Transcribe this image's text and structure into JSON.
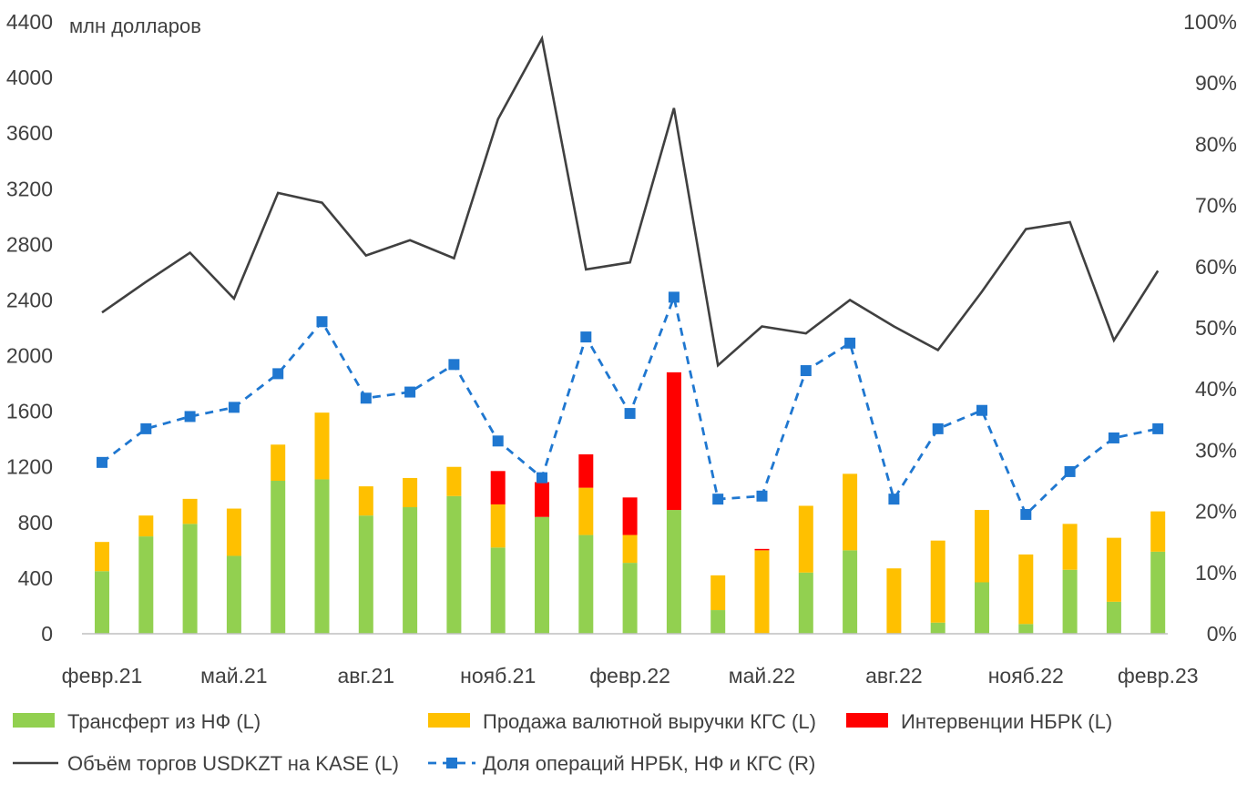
{
  "chart_data": {
    "type": "bar",
    "unit_label": "млн долларов",
    "left_axis": {
      "min": 0,
      "max": 4400,
      "ticks": [
        0,
        400,
        800,
        1200,
        1600,
        2000,
        2400,
        2800,
        3200,
        3600,
        4000,
        4400
      ]
    },
    "right_axis": {
      "min": 0,
      "max": 100,
      "ticks": [
        "0%",
        "10%",
        "20%",
        "30%",
        "40%",
        "50%",
        "60%",
        "70%",
        "80%",
        "90%",
        "100%"
      ]
    },
    "x_labels": [
      {
        "index": 0,
        "label": "февр.21"
      },
      {
        "index": 3,
        "label": "май.21"
      },
      {
        "index": 6,
        "label": "авг.21"
      },
      {
        "index": 9,
        "label": "нояб.21"
      },
      {
        "index": 12,
        "label": "февр.22"
      },
      {
        "index": 15,
        "label": "май.22"
      },
      {
        "index": 18,
        "label": "авг.22"
      },
      {
        "index": 21,
        "label": "нояб.22"
      },
      {
        "index": 24,
        "label": "февр.23"
      }
    ],
    "categories": [
      "2021-02",
      "2021-03",
      "2021-04",
      "2021-05",
      "2021-06",
      "2021-07",
      "2021-08",
      "2021-09",
      "2021-10",
      "2021-11",
      "2021-12",
      "2022-01",
      "2022-02",
      "2022-03",
      "2022-04",
      "2022-05",
      "2022-06",
      "2022-07",
      "2022-08",
      "2022-09",
      "2022-10",
      "2022-11",
      "2022-12",
      "2023-01",
      "2023-02"
    ],
    "series": [
      {
        "name": "Трансферт из НФ (L)",
        "kind": "stacked_bar",
        "axis": "left",
        "color": "#92d050",
        "values": [
          450,
          700,
          790,
          560,
          1100,
          1110,
          850,
          910,
          990,
          620,
          840,
          710,
          510,
          890,
          170,
          0,
          440,
          600,
          0,
          80,
          370,
          70,
          460,
          230,
          590
        ]
      },
      {
        "name": "Продажа валютной выручки КГС (L)",
        "kind": "stacked_bar",
        "axis": "left",
        "color": "#ffc000",
        "values": [
          210,
          150,
          180,
          340,
          260,
          480,
          210,
          210,
          210,
          310,
          0,
          340,
          200,
          0,
          250,
          600,
          480,
          550,
          470,
          590,
          520,
          500,
          330,
          460,
          290
        ]
      },
      {
        "name": "Интервенции НБРК (L)",
        "kind": "stacked_bar",
        "axis": "left",
        "color": "#ff0000",
        "values": [
          0,
          0,
          0,
          0,
          0,
          0,
          0,
          0,
          0,
          240,
          250,
          240,
          270,
          990,
          0,
          10,
          0,
          0,
          0,
          0,
          0,
          0,
          0,
          0,
          0
        ]
      },
      {
        "name": "Объём торгов USDKZT на KASE (L)",
        "kind": "line",
        "axis": "left",
        "color": "#404040",
        "values": [
          2310,
          2530,
          2740,
          2410,
          3170,
          3100,
          2720,
          2830,
          2700,
          3700,
          4280,
          2620,
          2670,
          3780,
          1930,
          2210,
          2160,
          2400,
          2210,
          2040,
          2460,
          2910,
          2960,
          2110,
          2610
        ]
      },
      {
        "name": "Доля операций НРБК, НФ и КГС (R)",
        "kind": "line_dashed_markers",
        "axis": "right",
        "color": "#1f77d0",
        "values": [
          28,
          33.5,
          35.5,
          37,
          42.5,
          51,
          38.5,
          39.5,
          44,
          31.5,
          25.5,
          48.5,
          36,
          55,
          22,
          22.5,
          43,
          47.5,
          22,
          33.5,
          36.5,
          19.5,
          26.5,
          32,
          33.5
        ]
      }
    ],
    "legend": [
      {
        "label": "Трансферт из НФ (L)",
        "swatch": "bar",
        "color": "#92d050"
      },
      {
        "label": "Продажа валютной выручки КГС (L)",
        "swatch": "bar",
        "color": "#ffc000"
      },
      {
        "label": "Интервенции НБРК (L)",
        "swatch": "bar",
        "color": "#ff0000"
      },
      {
        "label": "Объём торгов USDKZT на KASE (L)",
        "swatch": "line",
        "color": "#404040"
      },
      {
        "label": "Доля операций НРБК, НФ и КГС (R)",
        "swatch": "dashed",
        "color": "#1f77d0"
      }
    ]
  }
}
